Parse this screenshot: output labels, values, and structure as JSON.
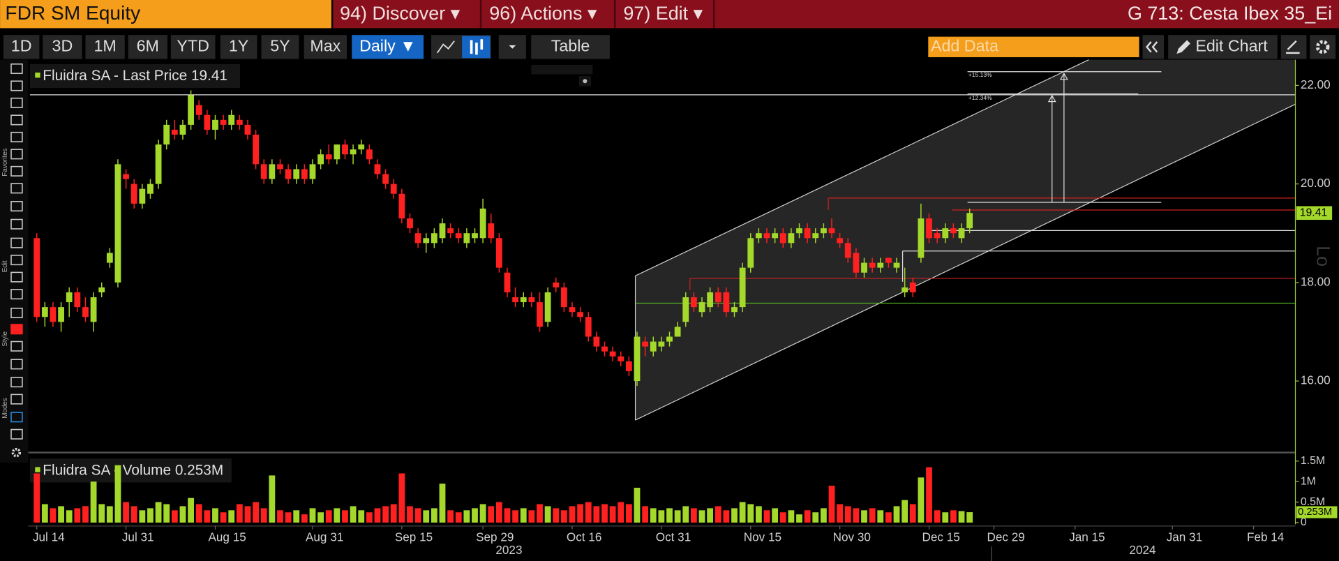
{
  "header": {
    "ticker": "FDR SM Equity",
    "menus": [
      "94) Discover ▾",
      "96) Actions ▾",
      "97) Edit ▾"
    ],
    "title": "G 713: Cesta Ibex 35_Ei"
  },
  "toolbar": {
    "ranges": [
      "1D",
      "3D",
      "1M",
      "6M",
      "YTD",
      "1Y",
      "5Y",
      "Max"
    ],
    "frequency": "Daily ▼",
    "table": "Table",
    "add_data": "Add Data",
    "edit_chart": "Edit Chart"
  },
  "side_labels": [
    "Favorites",
    "Edit",
    "Style",
    "Modes"
  ],
  "chart_data": [
    {
      "type": "candlestick",
      "name": "Fluidra SA - Last Price",
      "up_color": "#a4d82b",
      "down_color": "#ff2020",
      "categories": [
        "Jul 14",
        null,
        null,
        null,
        null,
        null,
        null,
        null,
        null,
        null,
        null,
        "Jul 31",
        null,
        null,
        null,
        null,
        null,
        null,
        null,
        null,
        null,
        null,
        "Aug 15",
        null,
        null,
        null,
        null,
        null,
        null,
        null,
        null,
        null,
        null,
        null,
        "Aug 31",
        null,
        null,
        null,
        null,
        null,
        null,
        null,
        null,
        null,
        null,
        "Sep 15",
        null,
        null,
        null,
        null,
        null,
        null,
        null,
        null,
        null,
        "Sep 29",
        null,
        null,
        null,
        null,
        null,
        null,
        null,
        null,
        null,
        null,
        "Oct 16",
        null,
        null,
        null,
        null,
        null,
        null,
        null,
        null,
        null,
        null,
        "Oct 31",
        null,
        null,
        null,
        null,
        null,
        null,
        null,
        null,
        null,
        null,
        "Nov 15",
        null,
        null,
        null,
        null,
        null,
        null,
        null,
        null,
        null,
        null,
        "Nov 30",
        null,
        null,
        null,
        null,
        null,
        null,
        null,
        null,
        null,
        null,
        "Dec 15",
        null,
        null,
        null,
        null,
        null,
        null,
        null,
        "Dec 29",
        null,
        null,
        null,
        null,
        null,
        null,
        null,
        null,
        null,
        "Jan 15",
        null,
        null,
        null,
        null,
        null,
        null,
        null,
        null,
        null,
        null,
        null,
        "Jan 31",
        null,
        null,
        null,
        null,
        null,
        null,
        null,
        null,
        null,
        "Feb 14",
        null,
        null
      ],
      "open": [
        18.9,
        17.3,
        17.5,
        17.2,
        17.6,
        17.8,
        17.5,
        17.2,
        17.8,
        18.4,
        18.0,
        20.2,
        20.0,
        19.6,
        19.8,
        20.0,
        20.8,
        21.1,
        21.0,
        21.2,
        21.6,
        21.4,
        21.1,
        21.3,
        21.2,
        21.3,
        21.2,
        21.0,
        20.4,
        20.1,
        20.4,
        20.3,
        20.1,
        20.3,
        20.1,
        20.4,
        20.6,
        20.5,
        20.8,
        20.6,
        20.7,
        20.7,
        20.4,
        20.2,
        20.0,
        19.8,
        19.3,
        19.0,
        18.8,
        18.8,
        18.9,
        19.1,
        19.0,
        18.8,
        18.9,
        18.9,
        19.2,
        18.9,
        18.2,
        17.7,
        17.6,
        17.7,
        17.6,
        17.2,
        18.0,
        17.9,
        17.5,
        17.4,
        17.3,
        16.9,
        16.7,
        16.6,
        16.5,
        16.4,
        16.0,
        16.8,
        16.6,
        16.7,
        16.8,
        16.9,
        17.2,
        17.7,
        17.4,
        17.5,
        17.8,
        17.8,
        17.4,
        17.5,
        18.3,
        18.9,
        19.0,
        18.9,
        19.0,
        18.8,
        19.0,
        19.1,
        18.9,
        19.0,
        19.1,
        18.9,
        18.8,
        18.6,
        18.2,
        18.4,
        18.3,
        18.5,
        18.3,
        17.8,
        18.0,
        18.5,
        19.3,
        19.0,
        18.9,
        19.1,
        18.9,
        19.1,
        null,
        null,
        null,
        null,
        null,
        null,
        null,
        null,
        null,
        null,
        null,
        null,
        null,
        null,
        null,
        null,
        null,
        null,
        null,
        null,
        null,
        null,
        null,
        null,
        null,
        null,
        null,
        null,
        null,
        null,
        null,
        null,
        null,
        null,
        null,
        null,
        null
      ],
      "high": [
        19.0,
        17.6,
        17.6,
        17.6,
        17.9,
        17.9,
        17.7,
        17.8,
        18.0,
        18.7,
        20.5,
        20.3,
        20.1,
        20.0,
        20.1,
        20.9,
        21.3,
        21.3,
        21.3,
        21.9,
        21.7,
        21.5,
        21.4,
        21.4,
        21.5,
        21.4,
        21.3,
        21.1,
        20.5,
        20.5,
        20.5,
        20.4,
        20.4,
        20.4,
        20.5,
        20.7,
        20.8,
        20.8,
        20.9,
        20.8,
        20.9,
        20.8,
        20.5,
        20.3,
        20.1,
        19.9,
        19.4,
        19.1,
        19.0,
        19.1,
        19.3,
        19.2,
        19.1,
        19.1,
        19.1,
        19.7,
        19.4,
        19.0,
        18.3,
        17.9,
        17.8,
        17.8,
        17.8,
        17.9,
        18.1,
        18.0,
        17.6,
        17.5,
        17.4,
        17.0,
        16.8,
        16.7,
        16.6,
        16.5,
        17.0,
        16.9,
        16.9,
        16.9,
        17.0,
        17.2,
        17.8,
        17.8,
        17.7,
        17.9,
        17.9,
        17.9,
        17.6,
        18.4,
        19.0,
        19.1,
        19.1,
        19.1,
        19.1,
        19.1,
        19.2,
        19.2,
        19.1,
        19.2,
        19.3,
        19.0,
        18.9,
        18.7,
        18.5,
        18.5,
        18.5,
        18.5,
        18.5,
        18.3,
        18.1,
        19.6,
        19.4,
        19.1,
        19.2,
        19.2,
        19.2,
        19.5,
        null,
        null,
        null,
        null,
        null,
        null,
        null,
        null,
        null,
        null,
        null,
        null,
        null,
        null,
        null,
        null,
        null,
        null,
        null,
        null,
        null,
        null,
        null,
        null,
        null,
        null,
        null,
        null,
        null,
        null,
        null,
        null,
        null,
        null,
        null,
        null,
        null
      ],
      "low": [
        17.2,
        17.1,
        17.1,
        17.0,
        17.3,
        17.4,
        17.2,
        17.0,
        17.7,
        18.3,
        17.9,
        19.9,
        19.5,
        19.5,
        19.7,
        19.9,
        20.7,
        20.9,
        20.9,
        21.1,
        21.3,
        21.0,
        20.9,
        21.1,
        21.1,
        21.1,
        20.9,
        20.3,
        20.0,
        20.0,
        20.2,
        20.0,
        20.0,
        20.0,
        20.0,
        20.3,
        20.4,
        20.4,
        20.5,
        20.4,
        20.6,
        20.4,
        20.1,
        19.9,
        19.7,
        19.2,
        19.0,
        18.7,
        18.6,
        18.7,
        18.8,
        18.9,
        18.8,
        18.7,
        18.8,
        18.8,
        18.8,
        18.2,
        17.7,
        17.5,
        17.5,
        17.5,
        17.0,
        17.1,
        17.8,
        17.4,
        17.3,
        17.2,
        16.8,
        16.6,
        16.5,
        16.4,
        16.3,
        16.1,
        15.9,
        16.5,
        16.5,
        16.6,
        16.7,
        16.9,
        17.1,
        17.4,
        17.3,
        17.4,
        17.5,
        17.3,
        17.3,
        17.4,
        18.2,
        18.8,
        18.8,
        18.8,
        18.7,
        18.7,
        18.9,
        18.8,
        18.8,
        18.9,
        18.9,
        18.7,
        18.4,
        18.1,
        18.1,
        18.2,
        18.2,
        18.3,
        18.2,
        17.7,
        17.7,
        18.4,
        18.8,
        18.8,
        18.8,
        18.9,
        18.8,
        19.0,
        null,
        null,
        null,
        null,
        null,
        null,
        null,
        null,
        null,
        null,
        null,
        null,
        null,
        null,
        null,
        null,
        null,
        null,
        null,
        null,
        null,
        null,
        null,
        null,
        null,
        null,
        null,
        null,
        null,
        null,
        null,
        null,
        null,
        null,
        null,
        null,
        null
      ],
      "close": [
        17.3,
        17.5,
        17.2,
        17.5,
        17.8,
        17.5,
        17.3,
        17.7,
        17.9,
        18.6,
        20.4,
        20.1,
        19.6,
        19.9,
        20.0,
        20.8,
        21.2,
        21.0,
        21.2,
        21.8,
        21.4,
        21.1,
        21.3,
        21.2,
        21.4,
        21.2,
        21.0,
        20.4,
        20.1,
        20.4,
        20.3,
        20.1,
        20.3,
        20.1,
        20.4,
        20.6,
        20.5,
        20.8,
        20.6,
        20.7,
        20.8,
        20.5,
        20.2,
        20.0,
        19.8,
        19.3,
        19.1,
        18.8,
        18.9,
        19.0,
        19.2,
        19.0,
        18.9,
        19.0,
        19.0,
        19.5,
        18.9,
        18.3,
        17.8,
        17.6,
        17.7,
        17.6,
        17.1,
        17.8,
        17.9,
        17.5,
        17.4,
        17.3,
        16.9,
        16.7,
        16.6,
        16.5,
        16.4,
        16.2,
        16.9,
        16.7,
        16.8,
        16.8,
        16.9,
        17.1,
        17.7,
        17.5,
        17.6,
        17.8,
        17.6,
        17.4,
        17.5,
        18.3,
        18.9,
        19.0,
        18.9,
        19.0,
        18.8,
        19.0,
        19.1,
        18.9,
        19.0,
        19.1,
        19.0,
        18.8,
        18.5,
        18.2,
        18.4,
        18.3,
        18.4,
        18.4,
        18.4,
        17.9,
        17.8,
        19.3,
        18.9,
        18.9,
        19.1,
        19.0,
        19.1,
        19.41,
        null,
        null,
        null,
        null,
        null,
        null,
        null,
        null,
        null,
        null,
        null,
        null,
        null,
        null,
        null,
        null,
        null,
        null,
        null,
        null,
        null,
        null,
        null,
        null,
        null,
        null,
        null,
        null,
        null,
        null,
        null,
        null,
        null,
        null,
        null,
        null,
        null
      ],
      "ylim": [
        14.6,
        22.52
      ],
      "yticks": [
        {
          "value": 16,
          "label": "16.00"
        },
        {
          "value": 18,
          "label": "18.00"
        },
        {
          "value": 20,
          "label": "20.00"
        },
        {
          "value": 22,
          "label": "22.00"
        }
      ],
      "annotations": [
        "+15.13%",
        "+12.34%"
      ],
      "axis_note": "Lo",
      "year_labels": [
        "2023",
        "2024"
      ]
    },
    {
      "type": "bar",
      "name": "Fluidra SA - Volume",
      "last_value_label": "0.253M",
      "values": [
        1.2,
        0.45,
        0.35,
        0.4,
        0.3,
        0.35,
        0.4,
        1.0,
        0.45,
        0.4,
        1.4,
        0.5,
        0.4,
        0.3,
        0.35,
        0.5,
        0.45,
        0.3,
        0.4,
        0.6,
        0.45,
        0.3,
        0.35,
        0.25,
        0.3,
        0.45,
        0.4,
        0.5,
        0.35,
        1.15,
        0.3,
        0.25,
        0.3,
        0.2,
        0.35,
        0.25,
        0.3,
        0.35,
        0.3,
        0.4,
        0.3,
        0.25,
        0.35,
        0.4,
        0.45,
        1.2,
        0.4,
        0.35,
        0.3,
        0.35,
        0.95,
        0.3,
        0.25,
        0.3,
        0.35,
        0.45,
        0.4,
        0.5,
        0.35,
        0.3,
        0.35,
        0.3,
        0.45,
        0.4,
        0.35,
        0.3,
        0.4,
        0.45,
        0.5,
        0.4,
        0.45,
        0.4,
        0.5,
        0.45,
        0.85,
        0.4,
        0.35,
        0.3,
        0.35,
        0.3,
        0.4,
        0.35,
        0.3,
        0.35,
        0.4,
        0.3,
        0.35,
        0.5,
        0.45,
        0.4,
        0.3,
        0.35,
        0.25,
        0.3,
        0.2,
        0.3,
        0.25,
        0.35,
        0.9,
        0.45,
        0.4,
        0.35,
        0.3,
        0.35,
        0.3,
        0.25,
        0.4,
        0.55,
        0.45,
        1.1,
        1.35,
        0.3,
        0.25,
        0.3,
        0.28,
        0.253,
        null,
        null,
        null,
        null,
        null,
        null,
        null,
        null,
        null,
        null,
        null,
        null,
        null,
        null,
        null,
        null,
        null,
        null,
        null,
        null,
        null,
        null,
        null,
        null,
        null,
        null,
        null,
        null,
        null,
        null,
        null,
        null,
        null,
        null,
        null,
        null,
        null
      ],
      "ylim": [
        0,
        1.6
      ],
      "yticks": [
        {
          "value": 0,
          "label": "0"
        },
        {
          "value": 0.5,
          "label": "0.5M"
        },
        {
          "value": 1,
          "label": "1M"
        },
        {
          "value": 1.5,
          "label": "1.5M"
        }
      ]
    }
  ]
}
